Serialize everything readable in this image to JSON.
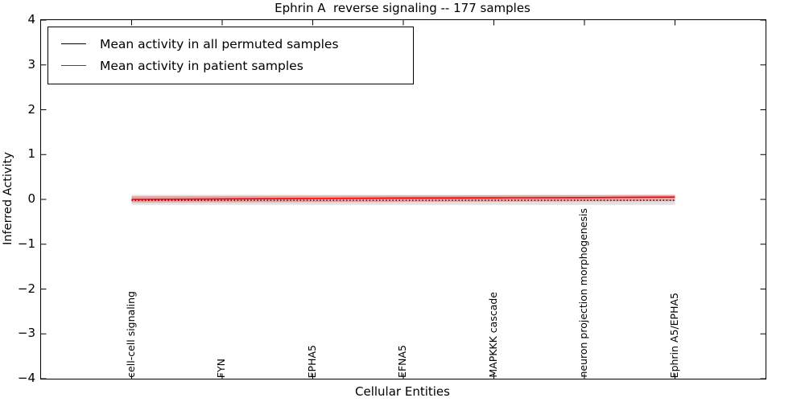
{
  "chart": {
    "title": "Ephrin A  reverse signaling -- 177 samples",
    "xlabel": "Cellular Entities",
    "ylabel": "Inferred Activity"
  },
  "legend": {
    "items": [
      {
        "label": "Mean activity in all permuted samples",
        "color": "#000000"
      },
      {
        "label": "Mean activity in patient samples",
        "color": "#ff0000"
      }
    ]
  },
  "chart_data": {
    "type": "line",
    "title": "Ephrin A  reverse signaling -- 177 samples",
    "xlabel": "Cellular Entities",
    "ylabel": "Inferred Activity",
    "categories": [
      "cell-cell signaling",
      "FYN",
      "EPHA5",
      "EFNA5",
      "MAPKKK cascade",
      "neuron projection morphogenesis",
      "Ephrin A5/EPHA5"
    ],
    "x": [
      0,
      1,
      2,
      3,
      4,
      5,
      6
    ],
    "xlim": [
      -1,
      7
    ],
    "ylim": [
      -4,
      4
    ],
    "yticks": [
      {
        "v": 4,
        "label": "4"
      },
      {
        "v": 3,
        "label": "3"
      },
      {
        "v": 2,
        "label": "2"
      },
      {
        "v": 1,
        "label": "1"
      },
      {
        "v": 0,
        "label": "0"
      },
      {
        "v": -1,
        "label": "−1"
      },
      {
        "v": -2,
        "label": "−2"
      },
      {
        "v": -3,
        "label": "−3"
      },
      {
        "v": -4,
        "label": "−4"
      }
    ],
    "grid": false,
    "legend_position": "upper left",
    "tick_direction": "in",
    "series": [
      {
        "name": "Mean activity in all permuted samples",
        "color": "#000000",
        "line_style": "dotted",
        "values": [
          -0.02,
          -0.02,
          -0.02,
          -0.02,
          -0.02,
          -0.02,
          -0.02
        ],
        "band": {
          "color": "#aaaaaa",
          "opacity": 0.35,
          "upper": [
            0.1,
            0.1,
            0.1,
            0.1,
            0.1,
            0.1,
            0.1
          ],
          "lower": [
            -0.12,
            -0.12,
            -0.12,
            -0.12,
            -0.12,
            -0.12,
            -0.12
          ]
        }
      },
      {
        "name": "Mean activity in patient samples",
        "color": "#ff0000",
        "line_style": "solid",
        "values": [
          0.0,
          0.01,
          0.02,
          0.03,
          0.035,
          0.04,
          0.05
        ],
        "band": {
          "color": "#ff0000",
          "opacity": 0.28,
          "upper": [
            0.07,
            0.075,
            0.08,
            0.085,
            0.09,
            0.095,
            0.1
          ],
          "lower": [
            -0.07,
            -0.065,
            -0.06,
            -0.055,
            -0.05,
            -0.045,
            -0.04
          ]
        }
      }
    ]
  }
}
